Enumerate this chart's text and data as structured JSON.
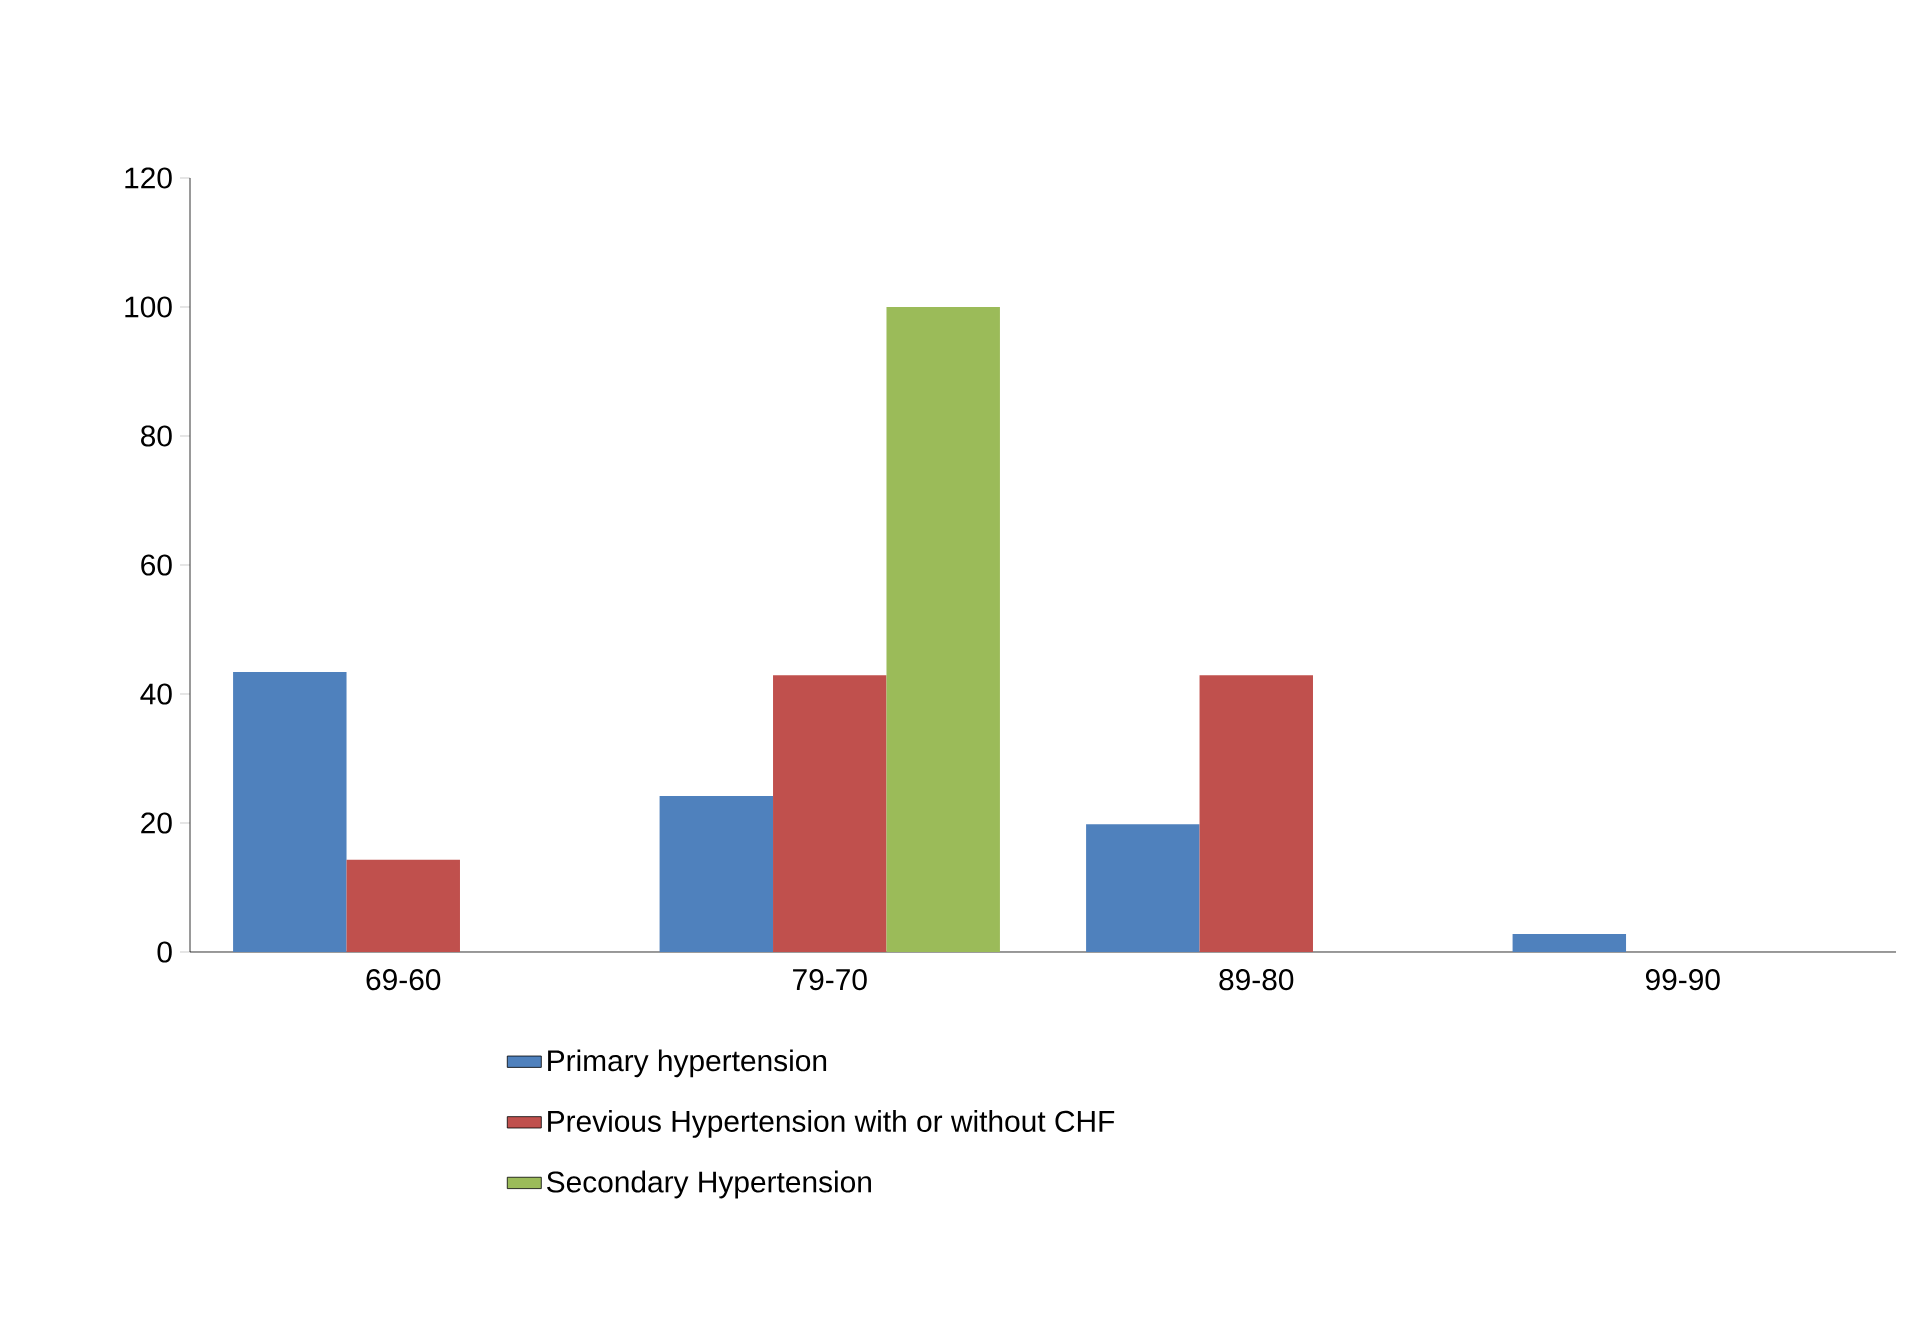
{
  "chart_data": {
    "type": "bar",
    "categories": [
      "69-60",
      "79-70",
      "89-80",
      "99-90"
    ],
    "series": [
      {
        "name": "Primary hypertension",
        "color": "#4f81bd",
        "values": [
          43.4,
          24.2,
          19.8,
          2.8
        ]
      },
      {
        "name": "Previous Hypertension with or without CHF",
        "color": "#c0504d",
        "values": [
          14.3,
          42.9,
          42.9,
          null
        ]
      },
      {
        "name": "Secondary Hypertension",
        "color": "#9bbb59",
        "values": [
          null,
          100,
          null,
          null
        ]
      }
    ],
    "ylim": [
      0,
      120
    ],
    "yticks": [
      0,
      20,
      40,
      60,
      80,
      100,
      120
    ],
    "legend": "bottom",
    "grid": false
  }
}
